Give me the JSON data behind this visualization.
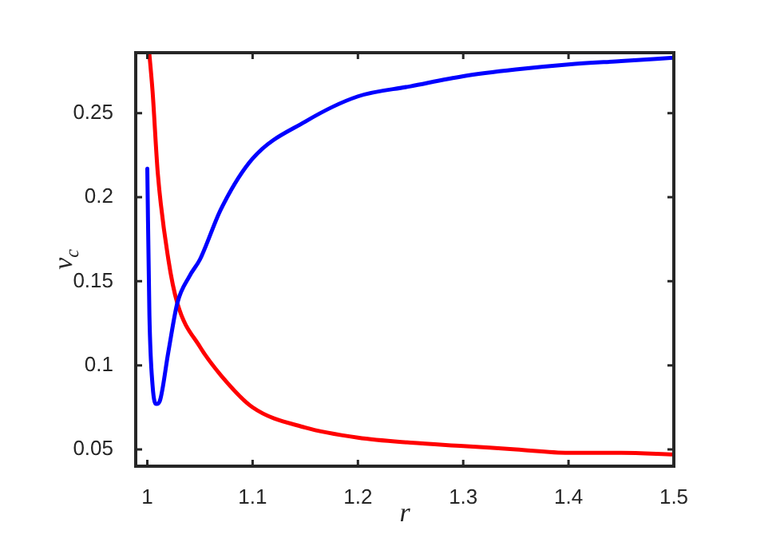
{
  "chart_data": {
    "type": "line",
    "xlabel": "r",
    "ylabel": "v$_{c}$",
    "marker": "none",
    "line_style": "solid",
    "xlim": [
      0.989,
      1.5
    ],
    "xticks": [
      1,
      1.1,
      1.2,
      1.3,
      1.4,
      1.5
    ],
    "ylim": [
      0.04,
      0.286
    ],
    "yticks": [
      0.05,
      0.1,
      0.15,
      0.2,
      0.25
    ],
    "series": [
      {
        "color": "#0000ff",
        "x": [
          1.0,
          1.002,
          1.005,
          1.0087,
          1.012,
          1.02,
          1.0285,
          1.04,
          1.05,
          1.07,
          1.1,
          1.15,
          1.2,
          1.25,
          1.3,
          1.35,
          1.4,
          1.45,
          1.5
        ],
        "values": [
          0.217,
          0.13,
          0.088,
          0.077,
          0.079,
          0.108,
          0.137,
          0.153,
          0.163,
          0.193,
          0.223,
          0.245,
          0.26,
          0.266,
          0.272,
          0.276,
          0.279,
          0.281,
          0.283
        ]
      },
      {
        "color": "#ff0000",
        "x": [
          1.002,
          1.005,
          1.01,
          1.02,
          1.0285,
          1.05,
          1.07,
          1.1,
          1.15,
          1.2,
          1.25,
          1.3,
          1.35,
          1.4,
          1.45,
          1.5
        ],
        "values": [
          0.285,
          0.263,
          0.214,
          0.163,
          0.137,
          0.111,
          0.094,
          0.075,
          0.063,
          0.057,
          0.054,
          0.052,
          0.05,
          0.048,
          0.048,
          0.047
        ]
      }
    ]
  }
}
